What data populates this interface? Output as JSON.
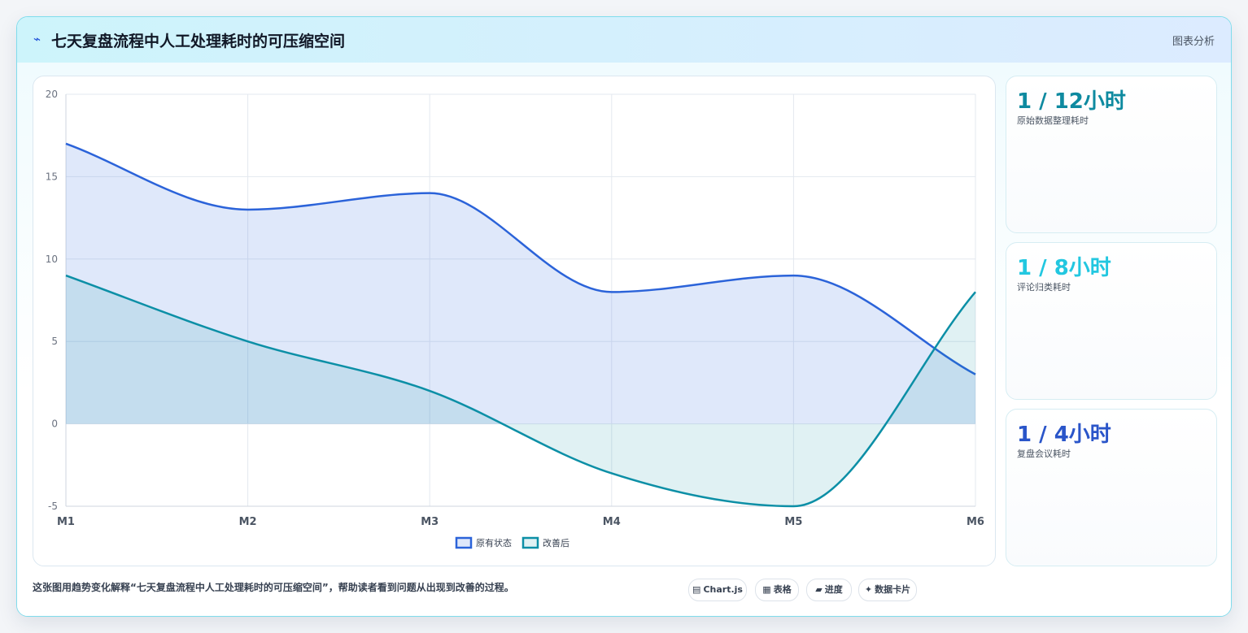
{
  "header": {
    "icon": "lightning-icon",
    "title": "七天复盘流程中人工处理耗时的可压缩空间",
    "tag": "图表分析"
  },
  "chart_data": {
    "type": "area",
    "title": "",
    "xlabel": "",
    "ylabel": "",
    "categories": [
      "M1",
      "M2",
      "M3",
      "M4",
      "M5",
      "M6"
    ],
    "ylim": [
      -5,
      20
    ],
    "yticks": [
      20,
      15,
      10,
      5,
      0,
      -5
    ],
    "grid": true,
    "legend": "bottom",
    "series": [
      {
        "name": "原有状态",
        "values": [
          17,
          13,
          14,
          8,
          9,
          3
        ],
        "color": "#2b63d9",
        "fill": "rgba(96,140,232,0.20)"
      },
      {
        "name": "改善后",
        "values": [
          9,
          5,
          2,
          -3,
          -5,
          8
        ],
        "color": "#0c8fa6",
        "fill": "rgba(12,143,166,0.13)"
      }
    ]
  },
  "stats": [
    {
      "value": "1 / 12小时",
      "label": "原始数据整理耗时",
      "color": "#0e8aa0"
    },
    {
      "value": "1 / 8小时",
      "label": "评论归类耗时",
      "color": "#22c7e0"
    },
    {
      "value": "1 / 4小时",
      "label": "复盘会议耗时",
      "color": "#2a55c9"
    }
  ],
  "footer": {
    "note": "这张图用趋势变化解释“七天复盘流程中人工处理耗时的可压缩空间”，帮助读者看到问题从出现到改善的过程。",
    "pills": [
      {
        "icon": "chart-icon",
        "glyph": "▤",
        "label": "Chart.js"
      },
      {
        "icon": "table-icon",
        "glyph": "▦",
        "label": "表格"
      },
      {
        "icon": "progress-icon",
        "glyph": "▰",
        "label": "进度"
      },
      {
        "icon": "sparkle-icon",
        "glyph": "✦",
        "label": "数据卡片"
      }
    ]
  }
}
